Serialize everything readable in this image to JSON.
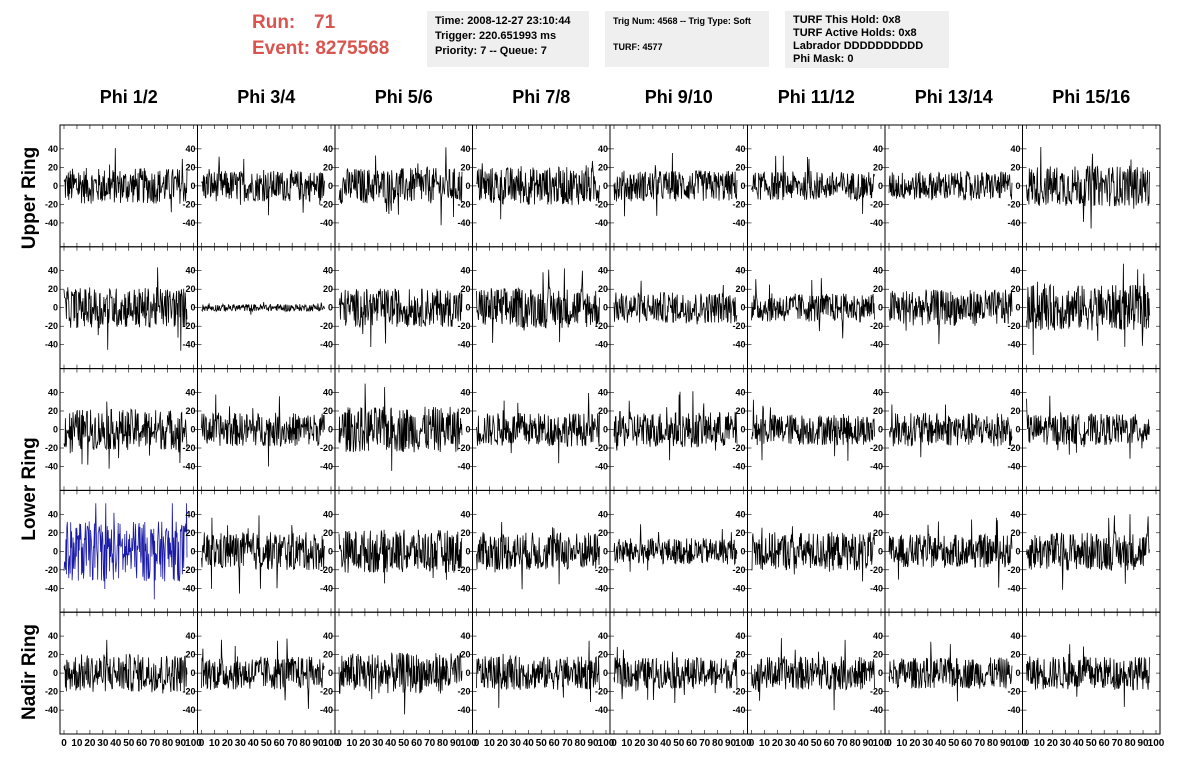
{
  "header": {
    "run_label": "Run:",
    "run_value": "71",
    "event_label": "Event:",
    "event_value": "8275568",
    "box1": [
      "Time: 2008-12-27 23:10:44",
      "Trigger: 220.651993 ms",
      "Priority: 7 -- Queue: 7"
    ],
    "box2": [
      "Trig Num: 4568 -- Trig Type: Soft",
      "",
      "TURF: 4577"
    ],
    "box3": [
      "TURF This Hold: 0x8",
      "TURF Active Holds: 0x8",
      "Labrador DDDDDDDDDD",
      "Phi Mask: 0"
    ]
  },
  "columns": [
    "Phi 1/2",
    "Phi 3/4",
    "Phi 5/6",
    "Phi 7/8",
    "Phi 9/10",
    "Phi 11/12",
    "Phi 13/14",
    "Phi 15/16"
  ],
  "rows": [
    "Upper Ring",
    "Upper Ring",
    "Lower Ring",
    "Lower Ring",
    "Nadir Ring"
  ],
  "row_labels_visible": [
    "Upper Ring",
    "Lower Ring",
    "Nadir Ring"
  ],
  "chart_data": {
    "type": "line",
    "layout": "grid 5 rows x 8 columns of waveform panels",
    "x_ticks": [
      "0",
      "10",
      "20",
      "30",
      "40",
      "50",
      "60",
      "70",
      "80",
      "90",
      "100"
    ],
    "y_ticks": [
      "40",
      "20",
      "0",
      "-20",
      "-40"
    ],
    "xlim": [
      0,
      100
    ],
    "ylim": [
      -55,
      55
    ],
    "n_samples": 260,
    "trace_color": "#000000",
    "highlight_color": "#1a1aa6",
    "highlight_panel": {
      "row": 3,
      "col": 0
    },
    "quiet_panel": {
      "row": 1,
      "col": 1,
      "amplitude": 3
    },
    "amplitudes": [
      [
        15,
        13,
        15,
        16,
        13,
        12,
        12,
        17
      ],
      [
        17,
        3,
        16,
        17,
        13,
        12,
        15,
        19
      ],
      [
        17,
        14,
        19,
        14,
        15,
        13,
        14,
        13
      ],
      [
        25,
        16,
        18,
        16,
        11,
        16,
        14,
        16
      ],
      [
        16,
        14,
        17,
        14,
        13,
        14,
        13,
        14
      ]
    ]
  },
  "colors": {
    "run_text": "#d9534f",
    "info_bg": "#efefef"
  }
}
